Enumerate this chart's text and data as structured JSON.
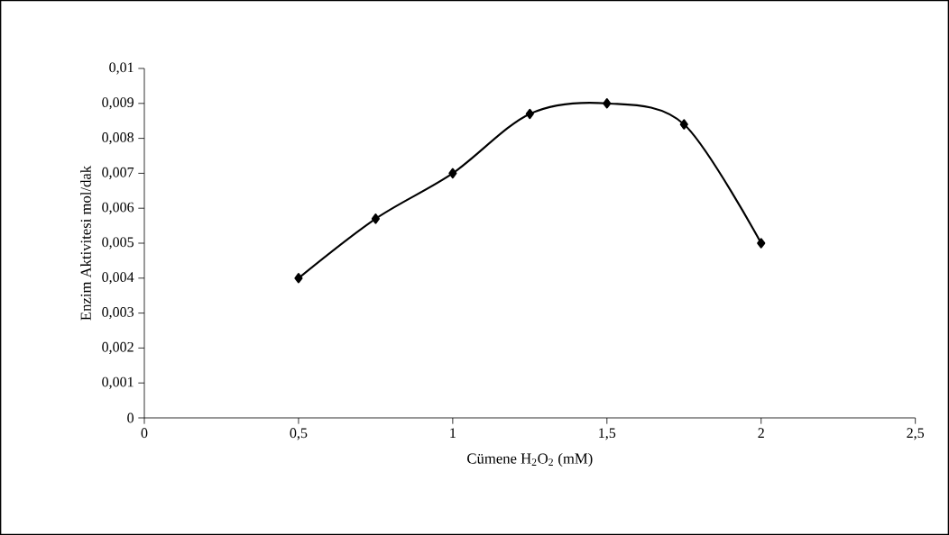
{
  "chart_data": {
    "type": "line",
    "xlabel": "Cümene H$_{2}$O$_{2}$ (mM)",
    "ylabel": "Enzim Aktivitesi mol/dak",
    "x": [
      0.5,
      0.75,
      1,
      1.25,
      1.5,
      1.75,
      2
    ],
    "values": [
      0.004,
      0.0057,
      0.007,
      0.0087,
      0.009,
      0.0084,
      0.005
    ],
    "color": "#000000",
    "marker": "diamond",
    "line_style": "solid",
    "grid": false,
    "xlim": [
      0,
      2.5
    ],
    "xticks": [
      {
        "value": 0,
        "label": "0"
      },
      {
        "value": 0.5,
        "label": "0,5"
      },
      {
        "value": 1,
        "label": "1"
      },
      {
        "value": 1.5,
        "label": "1,5"
      },
      {
        "value": 2,
        "label": "2"
      },
      {
        "value": 2.5,
        "label": "2,5"
      }
    ],
    "ylim": [
      0,
      0.01
    ],
    "yticks": [
      {
        "value": 0,
        "label": "0"
      },
      {
        "value": 0.001,
        "label": "0,001"
      },
      {
        "value": 0.002,
        "label": "0,002"
      },
      {
        "value": 0.003,
        "label": "0,003"
      },
      {
        "value": 0.004,
        "label": "0,004"
      },
      {
        "value": 0.005,
        "label": "0,005"
      },
      {
        "value": 0.006,
        "label": "0,006"
      },
      {
        "value": 0.007,
        "label": "0,007"
      },
      {
        "value": 0.008,
        "label": "0,008"
      },
      {
        "value": 0.009,
        "label": "0,009"
      },
      {
        "value": 0.01,
        "label": "0,01"
      }
    ]
  }
}
